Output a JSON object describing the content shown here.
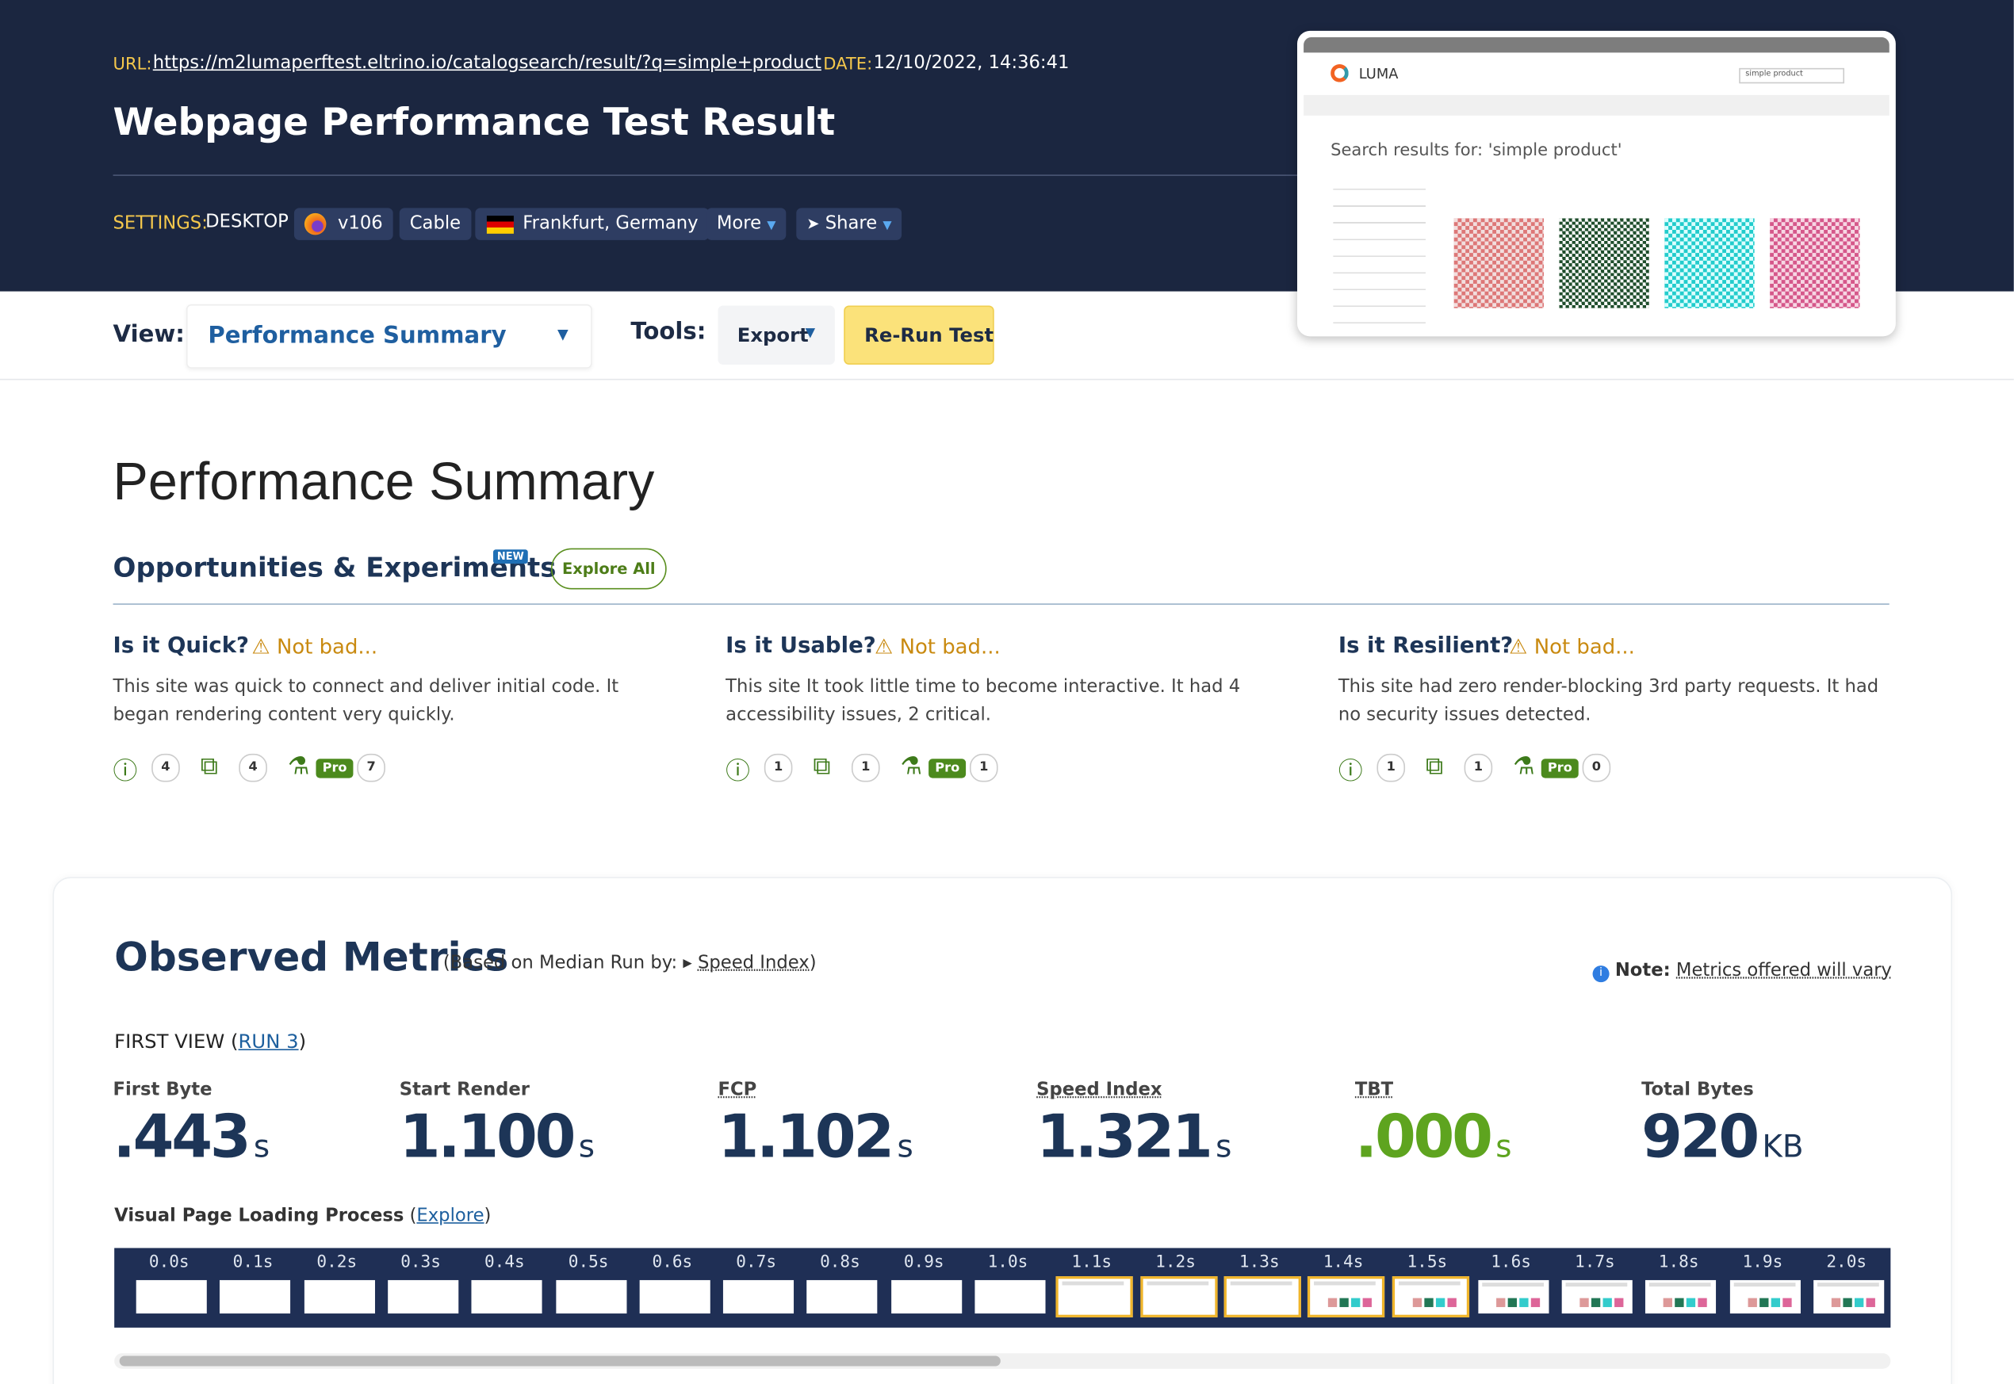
{
  "header": {
    "url_label": "URL:",
    "url": "https://m2lumaperftest.eltrino.io/catalogsearch/result/?q=simple+product",
    "date_label": "DATE:",
    "date": "12/10/2022, 14:36:41",
    "title": "Webpage Performance Test Result"
  },
  "settings": {
    "label": "SETTINGS:",
    "device": "DESKTOP",
    "browser": "v106",
    "connection": "Cable",
    "location": "Frankfurt, Germany",
    "more": "More",
    "share": "Share"
  },
  "toolbar": {
    "view_label": "View:",
    "view": "Performance Summary",
    "tools_label": "Tools:",
    "export": "Export",
    "rerun": "Re-Run Test"
  },
  "screenshot": {
    "brand": "LUMA",
    "search": "simple product",
    "heading": "Search results for: 'simple product'"
  },
  "summary": {
    "title": "Performance Summary",
    "section": "Opportunities & Experiments",
    "badge": "NEW",
    "explore": "Explore All",
    "pro": "Pro",
    "cards": [
      {
        "title": "Is it Quick?",
        "status": "Not bad...",
        "text": "This site was quick to connect and deliver initial code. It began rendering content very quickly.",
        "counts": [
          "4",
          "4",
          "7"
        ]
      },
      {
        "title": "Is it Usable?",
        "status": "Not bad...",
        "text": "This site It took little time to become interactive. It had 4 accessibility issues, 2 critical.",
        "counts": [
          "1",
          "1",
          "1"
        ]
      },
      {
        "title": "Is it Resilient?",
        "status": "Not bad...",
        "text": "This site had zero render-blocking 3rd party requests. It had no security issues detected.",
        "counts": [
          "1",
          "1",
          "0"
        ]
      }
    ]
  },
  "metrics": {
    "title": "Observed Metrics",
    "based_prefix": "(Based on Median Run by: ▸",
    "based_link": "Speed Index",
    "based_suffix": ")",
    "note_label": "Note:",
    "note": "Metrics offered will vary",
    "first_view_prefix": "FIRST VIEW (",
    "run": "RUN 3",
    "first_view_suffix": ")",
    "items": [
      {
        "label": "First Byte",
        "value": ".443",
        "unit": "s"
      },
      {
        "label": "Start Render",
        "value": "1.100",
        "unit": "s"
      },
      {
        "label": "FCP",
        "value": "1.102",
        "unit": "s"
      },
      {
        "label": "Speed Index",
        "value": "1.321",
        "unit": "s"
      },
      {
        "label": "TBT",
        "value": ".000",
        "unit": "s"
      },
      {
        "label": "Total Bytes",
        "value": "920",
        "unit": "KB"
      }
    ],
    "visual_label": "Visual Page Loading Process",
    "visual_open": "(",
    "visual_link": "Explore",
    "visual_close": ")",
    "frames": [
      "0.0s",
      "0.1s",
      "0.2s",
      "0.3s",
      "0.4s",
      "0.5s",
      "0.6s",
      "0.7s",
      "0.8s",
      "0.9s",
      "1.0s",
      "1.1s",
      "1.2s",
      "1.3s",
      "1.4s",
      "1.5s",
      "1.6s",
      "1.7s",
      "1.8s",
      "1.9s",
      "2.0s"
    ]
  }
}
